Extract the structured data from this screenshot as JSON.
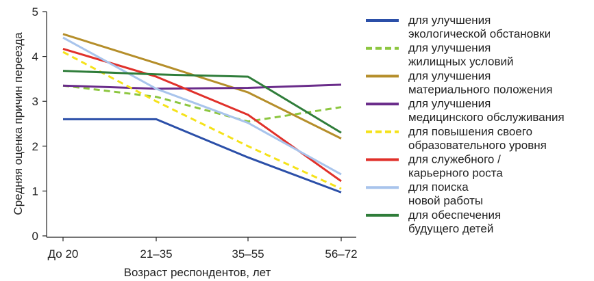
{
  "chart_data": {
    "type": "line",
    "xlabel": "Возраст респондентов, лет",
    "ylabel": "Средняя оценка причин переезда",
    "categories": [
      "До 20",
      "21–35",
      "35–55",
      "56–72"
    ],
    "ylim": [
      0,
      5
    ],
    "yticks": [
      0,
      1,
      2,
      3,
      4,
      5
    ],
    "grid": false,
    "legend_position": "right",
    "series": [
      {
        "name": "для улучшения экологической обстановки",
        "label_lines": [
          "для улучшения",
          "экологической обстановки"
        ],
        "color": "#2b4fa8",
        "dashed": false,
        "values": [
          2.6,
          2.6,
          1.75,
          0.97
        ]
      },
      {
        "name": "для улучшения жилищных условий",
        "label_lines": [
          "для улучшения",
          "жилищных условий"
        ],
        "color": "#8cc63f",
        "dashed": true,
        "values": [
          3.35,
          3.1,
          2.55,
          2.87
        ]
      },
      {
        "name": "для улучшения материального положения",
        "label_lines": [
          "для улучшения",
          "материального положения"
        ],
        "color": "#b58e2a",
        "dashed": false,
        "values": [
          4.5,
          3.85,
          3.2,
          2.17
        ]
      },
      {
        "name": "для улучшения медицинского обслуживания",
        "label_lines": [
          "для улучшения",
          "медицинского обслуживания"
        ],
        "color": "#6a2c8a",
        "dashed": false,
        "values": [
          3.35,
          3.28,
          3.3,
          3.37
        ]
      },
      {
        "name": "для повышения своего образовательного уровня",
        "label_lines": [
          "для повышения своего",
          "образовательного уровня"
        ],
        "color": "#f5e21a",
        "dashed": true,
        "values": [
          4.1,
          3.0,
          2.0,
          1.05
        ]
      },
      {
        "name": "для служебного / карьерного роста",
        "label_lines": [
          "для служебного /",
          "карьерного роста"
        ],
        "color": "#e0302a",
        "dashed": false,
        "values": [
          4.17,
          3.55,
          2.7,
          1.22
        ]
      },
      {
        "name": "для поиска новой работы",
        "label_lines": [
          "для поиска",
          "новой работы"
        ],
        "color": "#a8c4ec",
        "dashed": false,
        "values": [
          4.42,
          3.28,
          2.52,
          1.37
        ]
      },
      {
        "name": "для обеспечения будущего детей",
        "label_lines": [
          "для обеспечения",
          "будущего детей"
        ],
        "color": "#2f7d3a",
        "dashed": false,
        "values": [
          3.68,
          3.6,
          3.55,
          2.3
        ]
      }
    ]
  }
}
